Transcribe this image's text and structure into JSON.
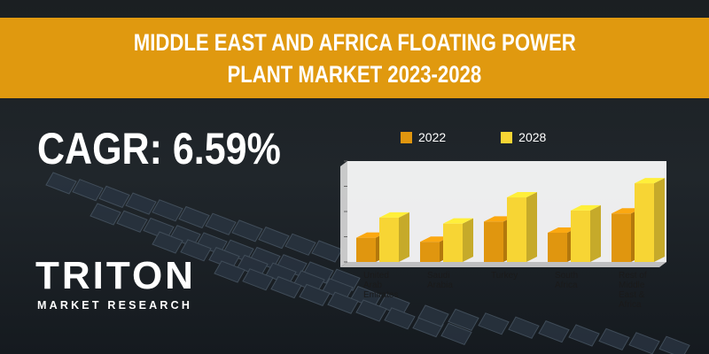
{
  "banner": {
    "title_line1": "MIDDLE EAST AND AFRICA FLOATING POWER",
    "title_line2": "PLANT MARKET 2023-2028"
  },
  "cagr": "CAGR: 6.59%",
  "logo": {
    "word": "TRITON",
    "subtitle": "MARKET RESEARCH"
  },
  "colors": {
    "banner": "#e0990f",
    "series_2022": "#e0960f",
    "series_2028": "#f7d534"
  },
  "chart_data": {
    "type": "bar",
    "categories": [
      [
        "United",
        "Arab",
        "Emirates"
      ],
      [
        "Saudi",
        "Arabia"
      ],
      [
        "Turkey"
      ],
      [
        "South",
        "Africa"
      ],
      [
        "Rest of",
        "Middle",
        "East &",
        "Africa"
      ]
    ],
    "series": [
      {
        "name": "2022",
        "values": [
          24,
          20,
          40,
          29,
          48
        ]
      },
      {
        "name": "2028",
        "values": [
          44,
          38,
          64,
          51,
          78
        ]
      }
    ],
    "ylim": [
      0,
      100
    ],
    "legend_position": "top",
    "grid": false
  }
}
